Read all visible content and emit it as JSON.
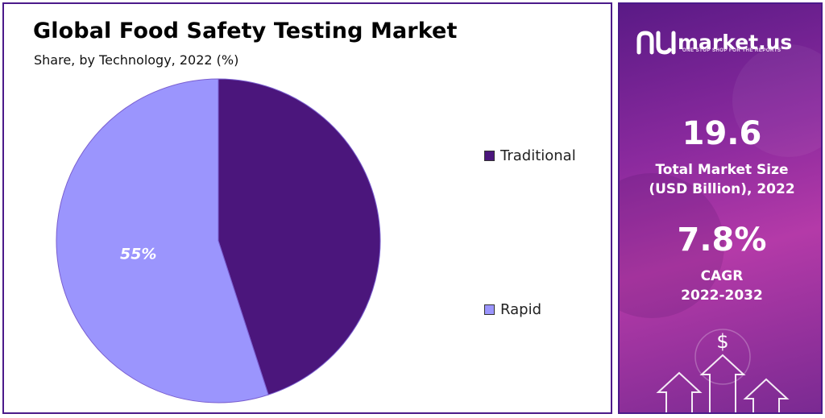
{
  "chart_data": {
    "type": "pie",
    "title": "Global Food Safety Testing Market",
    "subtitle": "Share, by Technology, 2022 (%)",
    "categories": [
      "Traditional",
      "Rapid"
    ],
    "values": [
      45,
      55
    ],
    "data_labels": [
      "",
      "55%"
    ],
    "colors": [
      "#4b167c",
      "#9b95fd"
    ],
    "legend_position": "right"
  },
  "sidebar": {
    "brand_name": "market.us",
    "brand_tagline": "ONE STOP SHOP FOR THE REPORTS",
    "market_size_value": "19.6",
    "market_size_label_line1": "Total Market Size",
    "market_size_label_line2": "(USD Billion), 2022",
    "cagr_value": "7.8%",
    "cagr_label": "CAGR",
    "cagr_period": "2022-2032"
  }
}
